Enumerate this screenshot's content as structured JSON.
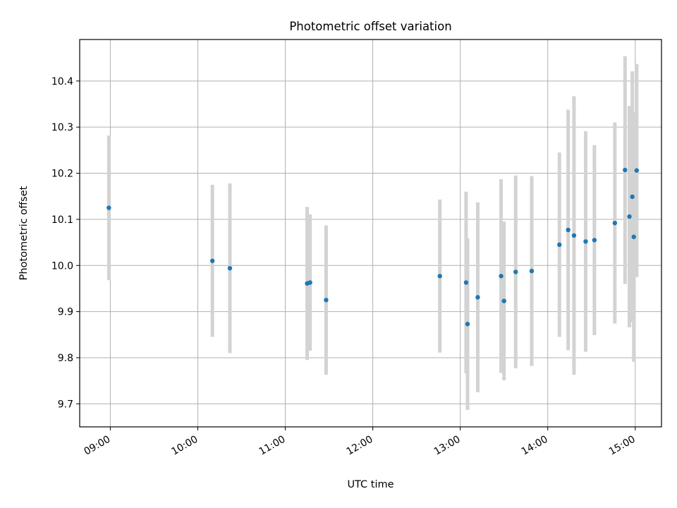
{
  "chart_data": {
    "type": "scatter",
    "title": "Photometric offset variation",
    "xlabel": "UTC time",
    "ylabel": "Photometric offset",
    "x_axis_type": "time",
    "xlim": [
      "08:39",
      "15:18"
    ],
    "ylim": [
      9.65,
      10.49
    ],
    "x_ticks": [
      "09:00",
      "10:00",
      "11:00",
      "12:00",
      "13:00",
      "14:00",
      "15:00"
    ],
    "y_ticks": [
      "9.7",
      "9.8",
      "9.9",
      "10.0",
      "10.1",
      "10.2",
      "10.3",
      "10.4"
    ],
    "grid": true,
    "errorbar_color": "#d3d3d3",
    "point_color": "#1f77b4",
    "series": [
      {
        "points": [
          {
            "x": "08:59",
            "y": 10.125,
            "err": 0.157
          },
          {
            "x": "10:10",
            "y": 10.01,
            "err": 0.165
          },
          {
            "x": "10:22",
            "y": 9.994,
            "err": 0.184
          },
          {
            "x": "11:15",
            "y": 9.961,
            "err": 0.166
          },
          {
            "x": "11:17",
            "y": 9.963,
            "err": 0.148
          },
          {
            "x": "11:28",
            "y": 9.925,
            "err": 0.162
          },
          {
            "x": "12:46",
            "y": 9.977,
            "err": 0.166
          },
          {
            "x": "13:04",
            "y": 9.963,
            "err": 0.197
          },
          {
            "x": "13:05",
            "y": 9.873,
            "err": 0.186
          },
          {
            "x": "13:12",
            "y": 9.931,
            "err": 0.206
          },
          {
            "x": "13:28",
            "y": 9.977,
            "err": 0.21
          },
          {
            "x": "13:30",
            "y": 9.923,
            "err": 0.172
          },
          {
            "x": "13:38",
            "y": 9.986,
            "err": 0.209
          },
          {
            "x": "13:49",
            "y": 9.988,
            "err": 0.206
          },
          {
            "x": "14:08",
            "y": 10.045,
            "err": 0.2
          },
          {
            "x": "14:14",
            "y": 10.077,
            "err": 0.261
          },
          {
            "x": "14:18",
            "y": 10.065,
            "err": 0.302
          },
          {
            "x": "14:26",
            "y": 10.052,
            "err": 0.239
          },
          {
            "x": "14:32",
            "y": 10.055,
            "err": 0.206
          },
          {
            "x": "14:46",
            "y": 10.092,
            "err": 0.218
          },
          {
            "x": "14:53",
            "y": 10.207,
            "err": 0.247
          },
          {
            "x": "14:56",
            "y": 10.106,
            "err": 0.24
          },
          {
            "x": "14:58",
            "y": 10.149,
            "err": 0.272
          },
          {
            "x": "14:59",
            "y": 10.062,
            "err": 0.271
          },
          {
            "x": "15:01",
            "y": 10.206,
            "err": 0.231
          }
        ]
      }
    ]
  }
}
